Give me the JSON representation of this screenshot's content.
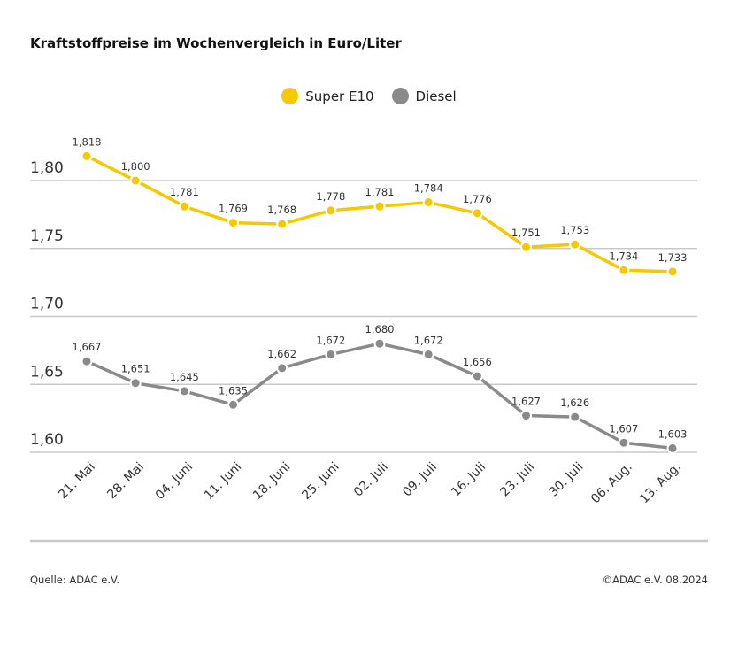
{
  "chart_data": {
    "type": "line",
    "title": "Kraftstoffpreise im Wochenvergleich in Euro/Liter",
    "categories": [
      "21. Mai",
      "28. Mai",
      "04. Juni",
      "11. Juni",
      "18. Juni",
      "25. Juni",
      "02. Juli",
      "09. Juli",
      "16. Juli",
      "23. Juli",
      "30. Juli",
      "06. Aug.",
      "13. Aug."
    ],
    "series": [
      {
        "name": "Super E10",
        "color": "#f5c800",
        "values": [
          1.818,
          1.8,
          1.781,
          1.769,
          1.768,
          1.778,
          1.781,
          1.784,
          1.776,
          1.751,
          1.753,
          1.734,
          1.733
        ],
        "labels": [
          "1,818",
          "1,800",
          "1,781",
          "1,769",
          "1,768",
          "1,778",
          "1,781",
          "1,784",
          "1,776",
          "1,751",
          "1,753",
          "1,734",
          "1,733"
        ]
      },
      {
        "name": "Diesel",
        "color": "#8a8a8a",
        "values": [
          1.667,
          1.651,
          1.645,
          1.635,
          1.662,
          1.672,
          1.68,
          1.672,
          1.656,
          1.627,
          1.626,
          1.607,
          1.603
        ],
        "labels": [
          "1,667",
          "1,651",
          "1,645",
          "1,635",
          "1,662",
          "1,672",
          "1,680",
          "1,672",
          "1,656",
          "1,627",
          "1,626",
          "1,607",
          "1,603"
        ]
      }
    ],
    "ylim": [
      1.6,
      1.8
    ],
    "yticks": [
      1.6,
      1.65,
      1.7,
      1.75,
      1.8
    ],
    "ytick_labels": [
      "1,60",
      "1,65",
      "1,70",
      "1,75",
      "1,80"
    ],
    "grid": true,
    "legend_position": "top-center"
  },
  "footer": {
    "source": "Quelle: ADAC e.V.",
    "copyright": "©ADAC e.V. 08.2024"
  }
}
